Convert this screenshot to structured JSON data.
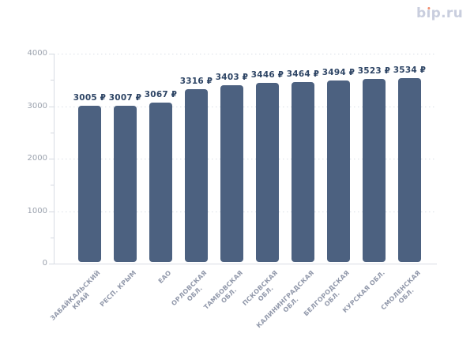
{
  "page": {
    "background": "#ffffff"
  },
  "logo": {
    "text": "bip.ru",
    "prefix": "b",
    "i_stem": "ı",
    "suffix": "p.ru",
    "color": "#c9cede",
    "dot_color": "#f18b6c"
  },
  "chart_data": {
    "type": "bar",
    "title": "",
    "xlabel": "",
    "ylabel": "",
    "currency_suffix": "₽",
    "categories": [
      "ЗАБАЙКАЛЬСКИЙ КРАЙ",
      "РЕСП. КРЫМ",
      "ЕАО",
      "ОРЛОВСКАЯ ОБЛ.",
      "ТАМБОВСКАЯ ОБЛ.",
      "ПСКОВСКАЯ ОБЛ.",
      "КАЛИНИНГРАДСКАЯ ОБЛ.",
      "БЕЛГОРОДСКАЯ ОБЛ.",
      "КУРСКАЯ ОБЛ.",
      "СМОЛЕНСКАЯ ОБЛ."
    ],
    "categories_lines": [
      [
        "ЗАБАЙКАЛЬСКИЙ",
        "КРАЙ"
      ],
      [
        "РЕСП. КРЫМ"
      ],
      [
        "ЕАО"
      ],
      [
        "ОРЛОВСКАЯ",
        "ОБЛ."
      ],
      [
        "ТАМБОВСКАЯ",
        "ОБЛ."
      ],
      [
        "ПСКОВСКАЯ",
        "ОБЛ."
      ],
      [
        "КАЛИНИНГРАДСКАЯ",
        "ОБЛ."
      ],
      [
        "БЕЛГОРОДСКАЯ",
        "ОБЛ."
      ],
      [
        "КУРСКАЯ ОБЛ."
      ],
      [
        "СМОЛЕНСКАЯ",
        "ОБЛ."
      ]
    ],
    "values": [
      3005,
      3007,
      3067,
      3316,
      3403,
      3446,
      3464,
      3494,
      3523,
      3534
    ],
    "value_labels": [
      "3005 ₽",
      "3007 ₽",
      "3067 ₽",
      "3316 ₽",
      "3403 ₽",
      "3446 ₽",
      "3464 ₽",
      "3494 ₽",
      "3523 ₽",
      "3534 ₽"
    ],
    "ylim": [
      0,
      4000
    ],
    "yticks_major": [
      0,
      1000,
      2000,
      3000,
      4000
    ],
    "yticks_minor": [
      500,
      1500,
      2500,
      3500
    ],
    "grid": "horizontal-dotted",
    "legend": null,
    "colors": {
      "bar": "#4c6180",
      "value_label": "#2e4565",
      "axis_line": "#d8dce3",
      "tick_label": "#9aa1ad",
      "x_label": "#9299ab",
      "gridline": "#dadfe7"
    }
  }
}
